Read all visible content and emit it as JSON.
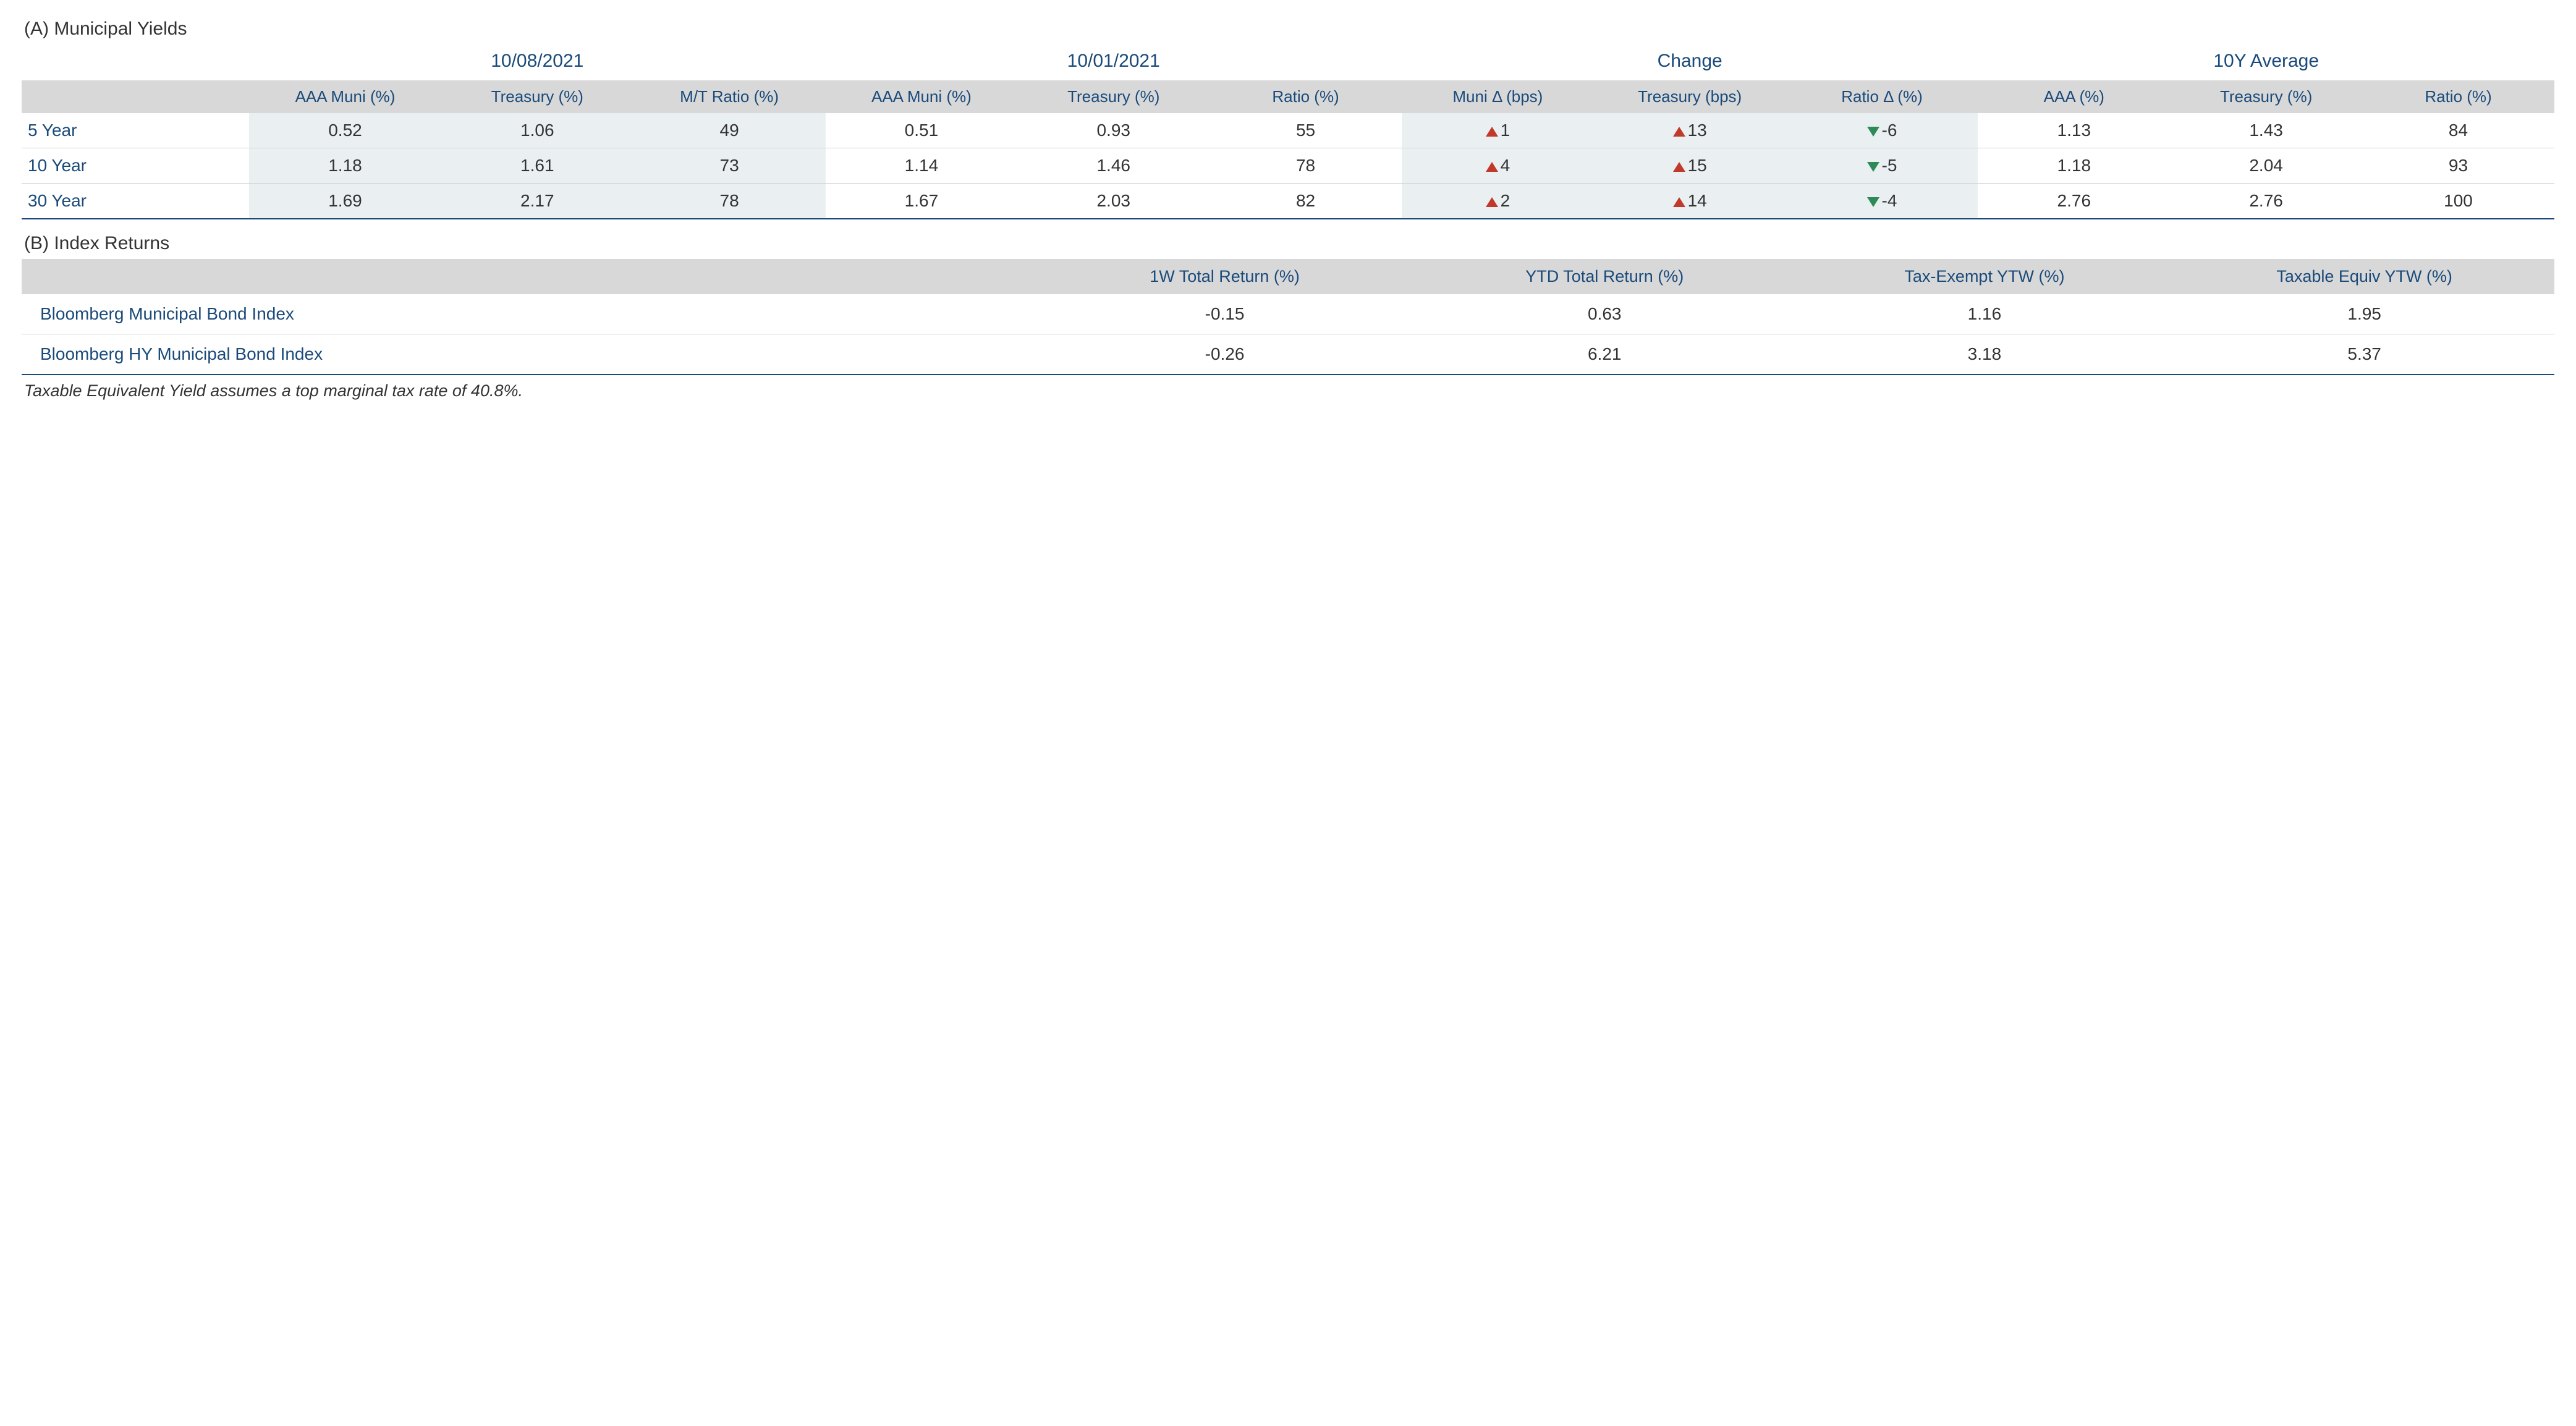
{
  "colors": {
    "header_text": "#1a4a7a",
    "body_text": "#333333",
    "header_bg": "#d8d8d8",
    "shade_bg": "#eaf0f2",
    "up": "#c0392b",
    "down": "#2e8b57",
    "rule": "#cfcfcf",
    "bottom_rule": "#1a4a7a"
  },
  "sectionA": {
    "title": "(A) Municipal Yields",
    "groups": [
      "10/08/2021",
      "10/01/2021",
      "Change",
      "10Y Average"
    ],
    "columns": {
      "g0": [
        "AAA Muni (%)",
        "Treasury (%)",
        "M/T Ratio (%)"
      ],
      "g1": [
        "AAA Muni (%)",
        "Treasury (%)",
        "Ratio (%)"
      ],
      "g2": [
        "Muni Δ (bps)",
        "Treasury (bps)",
        "Ratio Δ (%)"
      ],
      "g3": [
        "AAA (%)",
        "Treasury (%)",
        "Ratio (%)"
      ]
    },
    "rows": [
      {
        "label": "5 Year",
        "g0": [
          "0.52",
          "1.06",
          "49"
        ],
        "g1": [
          "0.51",
          "0.93",
          "55"
        ],
        "g2": [
          {
            "v": "1",
            "dir": "up"
          },
          {
            "v": "13",
            "dir": "up"
          },
          {
            "v": "-6",
            "dir": "down"
          }
        ],
        "g3": [
          "1.13",
          "1.43",
          "84"
        ]
      },
      {
        "label": "10 Year",
        "g0": [
          "1.18",
          "1.61",
          "73"
        ],
        "g1": [
          "1.14",
          "1.46",
          "78"
        ],
        "g2": [
          {
            "v": "4",
            "dir": "up"
          },
          {
            "v": "15",
            "dir": "up"
          },
          {
            "v": "-5",
            "dir": "down"
          }
        ],
        "g3": [
          "1.18",
          "2.04",
          "93"
        ]
      },
      {
        "label": "30 Year",
        "g0": [
          "1.69",
          "2.17",
          "78"
        ],
        "g1": [
          "1.67",
          "2.03",
          "82"
        ],
        "g2": [
          {
            "v": "2",
            "dir": "up"
          },
          {
            "v": "14",
            "dir": "up"
          },
          {
            "v": "-4",
            "dir": "down"
          }
        ],
        "g3": [
          "2.76",
          "2.76",
          "100"
        ]
      }
    ]
  },
  "sectionB": {
    "title": "(B) Index Returns",
    "columns": [
      "1W Total Return (%)",
      "YTD Total Return (%)",
      "Tax-Exempt YTW (%)",
      "Taxable Equiv YTW (%)"
    ],
    "rows": [
      {
        "label": "Bloomberg Municipal Bond Index",
        "vals": [
          "-0.15",
          "0.63",
          "1.16",
          "1.95"
        ]
      },
      {
        "label": "Bloomberg HY Municipal Bond Index",
        "vals": [
          "-0.26",
          "6.21",
          "3.18",
          "5.37"
        ]
      }
    ]
  },
  "footnote": "Taxable Equivalent Yield assumes a top marginal tax rate of 40.8%."
}
